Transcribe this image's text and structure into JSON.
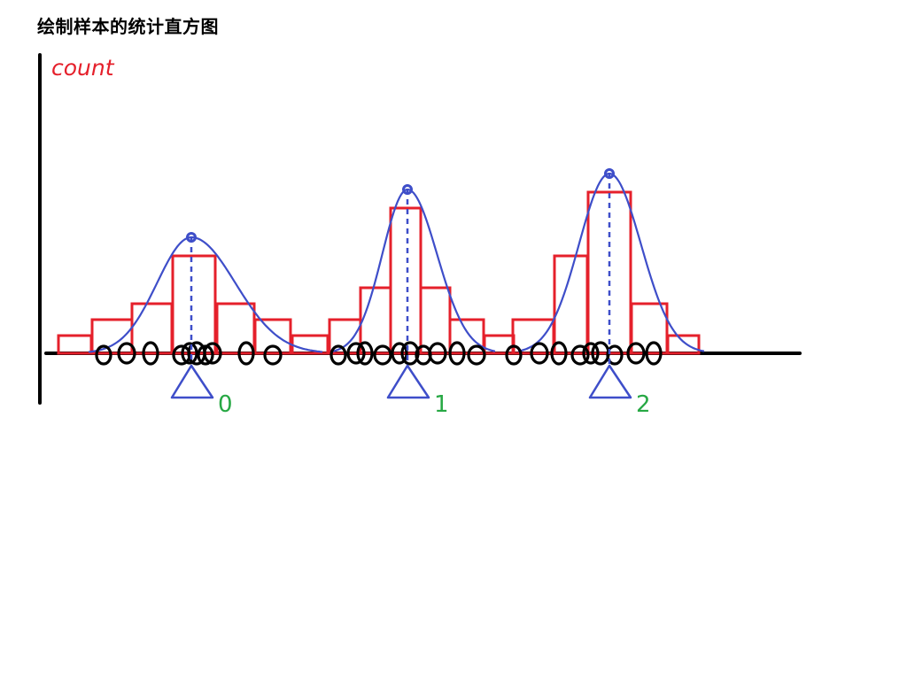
{
  "title": "绘制样本的统计直方图",
  "y_axis_label": "count",
  "colors": {
    "axis": "#000000",
    "histogram": "#e5202b",
    "curve": "#3e4ec9",
    "means": "#3e4ec9",
    "mean_labels": "#27a844",
    "samples": "#000000"
  },
  "groups": [
    {
      "mean_label": "0",
      "bar_counts": [
        1,
        2,
        3,
        6,
        3,
        2,
        1
      ],
      "peak_value": 7
    },
    {
      "mean_label": "1",
      "bar_counts": [
        2,
        4,
        9,
        4,
        2,
        1
      ],
      "peak_value": 10
    },
    {
      "mean_label": "2",
      "bar_counts": [
        2,
        6,
        10,
        3,
        1
      ],
      "peak_value": 11
    }
  ]
}
